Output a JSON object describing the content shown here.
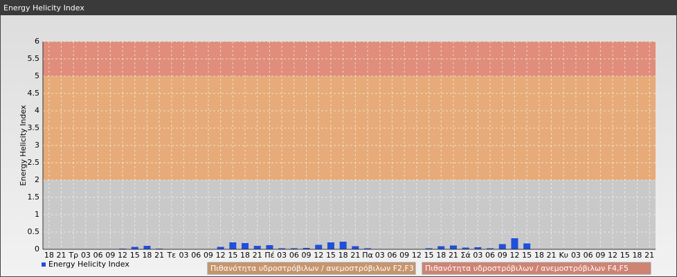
{
  "chart_data": {
    "type": "bar",
    "title": "Energy Helicity Index",
    "y_label": "Energy Helicity Index",
    "categories": [
      "18",
      "21",
      "Τρ",
      "03",
      "06",
      "09",
      "12",
      "15",
      "18",
      "21",
      "Τε",
      "03",
      "06",
      "09",
      "12",
      "15",
      "18",
      "21",
      "Πέ",
      "03",
      "06",
      "09",
      "12",
      "15",
      "18",
      "21",
      "Πα",
      "03",
      "06",
      "09",
      "12",
      "15",
      "18",
      "21",
      "Σά",
      "03",
      "06",
      "09",
      "12",
      "15",
      "18",
      "21",
      "Κυ",
      "03",
      "06",
      "09",
      "12",
      "15",
      "18",
      "21"
    ],
    "series": [
      {
        "name": "Energy Helicity Index",
        "color": "#1f4fdc",
        "values": [
          0.01,
          0.01,
          0.01,
          0.01,
          0.01,
          0.01,
          0.02,
          0.07,
          0.1,
          0.02,
          0.01,
          0.01,
          0.01,
          0.01,
          0.07,
          0.2,
          0.18,
          0.1,
          0.12,
          0.03,
          0.03,
          0.04,
          0.13,
          0.2,
          0.22,
          0.09,
          0.03,
          0.01,
          0.01,
          0.01,
          0.01,
          0.03,
          0.09,
          0.11,
          0.05,
          0.06,
          0.03,
          0.15,
          0.32,
          0.17,
          0.01,
          0.01,
          0.01,
          0.01,
          0.01,
          0.01,
          0.01,
          0.01,
          0.01,
          0.01
        ]
      }
    ],
    "bands": [
      {
        "from": 0,
        "to": 2,
        "color": "#c9c9c9"
      },
      {
        "from": 2,
        "to": 5,
        "color": "#e6ab78",
        "name": "Πιθανότητα υδροστρόβιλων / ανεμοστρόβιλων F2,F3",
        "legend_color": "#c7956c"
      },
      {
        "from": 5,
        "to": 6,
        "color": "#e08d7b",
        "name": "Πιθανότητα υδροστρόβιλων / ανεμοστρόβιλων F4,F5",
        "legend_color": "#cf8373"
      }
    ],
    "ylim": [
      0,
      6
    ],
    "yticks": [
      0,
      0.5,
      1,
      1.5,
      2,
      2.5,
      3,
      3.5,
      4,
      4.5,
      5,
      5.5,
      6
    ],
    "grid": true
  }
}
